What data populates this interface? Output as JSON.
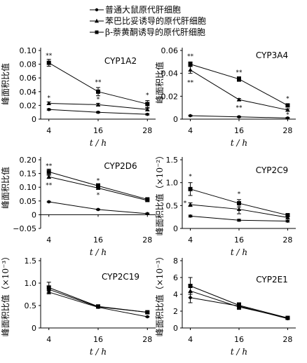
{
  "legend": [
    {
      "label": "普通大鼠原代肝细胞",
      "marker": "circle"
    },
    {
      "label": "苯巴比妥诱导的原代肝细胞",
      "marker": "triangle"
    },
    {
      "label": "β-萘黄酮诱导的原代肝细胞",
      "marker": "square"
    }
  ],
  "chart_data": [
    {
      "type": "line",
      "title": "CYP1A2",
      "ylabel": "峰面积比值",
      "xlabel": "t / h",
      "x": [
        4,
        16,
        28
      ],
      "ylim": [
        0,
        0.1
      ],
      "yticks": [
        "0",
        "0.02",
        "0.04",
        "0.06",
        "0.08",
        "0.10"
      ],
      "xticks": [
        "4",
        "16",
        "28"
      ],
      "series": [
        {
          "name": "普通大鼠原代肝细胞",
          "values": [
            0.014,
            0.01,
            0.007
          ],
          "err": [
            0.001,
            0.001,
            0.001
          ]
        },
        {
          "name": "苯巴比妥诱导的原代肝细胞",
          "values": [
            0.023,
            0.021,
            0.014
          ],
          "err": [
            0.002,
            0.002,
            0.002
          ]
        },
        {
          "name": "β-萘黄酮诱导的原代肝细胞",
          "values": [
            0.082,
            0.04,
            0.022
          ],
          "err": [
            0.005,
            0.006,
            0.005
          ]
        }
      ],
      "annotations": [
        {
          "x": 4,
          "y": 0.093,
          "text": "**"
        },
        {
          "x": 16,
          "y": 0.054,
          "text": "**"
        },
        {
          "x": 28,
          "y": 0.035,
          "text": "*"
        },
        {
          "x": 4,
          "y": 0.031,
          "text": "*"
        },
        {
          "x": 16,
          "y": 0.029,
          "text": "*"
        }
      ]
    },
    {
      "type": "line",
      "title": "CYP3A4",
      "ylabel": "峰面积比值",
      "xlabel": "t / h",
      "x": [
        4,
        16,
        28
      ],
      "ylim": [
        0,
        0.06
      ],
      "yticks": [
        "0",
        "0.02",
        "0.04",
        "0.06"
      ],
      "xticks": [
        "4",
        "16",
        "28"
      ],
      "series": [
        {
          "name": "普通大鼠原代肝细胞",
          "values": [
            0.003,
            0.002,
            0.001
          ],
          "err": [
            0.0005,
            0.0005,
            0.0005
          ]
        },
        {
          "name": "苯巴比妥诱导的原代肝细胞",
          "values": [
            0.043,
            0.017,
            0.008
          ],
          "err": [
            0.003,
            0.001,
            0.001
          ]
        },
        {
          "name": "β-萘黄酮诱导的原代肝细胞",
          "values": [
            0.048,
            0.035,
            0.012
          ],
          "err": [
            0.002,
            0.002,
            0.001
          ]
        }
      ],
      "annotations": [
        {
          "x": 4,
          "y": 0.055,
          "text": "**"
        },
        {
          "x": 16,
          "y": 0.041,
          "text": "**"
        },
        {
          "x": 28,
          "y": 0.018,
          "text": "*"
        },
        {
          "x": 4,
          "y": 0.032,
          "text": "**"
        },
        {
          "x": 16,
          "y": 0.01,
          "text": "**"
        },
        {
          "x": 28,
          "y": 0.004,
          "text": "*"
        }
      ]
    },
    {
      "type": "line",
      "title": "CYP2D6",
      "ylabel": "峰面积比值",
      "xlabel": "t / h",
      "x": [
        4,
        16,
        28
      ],
      "ylim": [
        -0.05,
        0.2
      ],
      "yticks": [
        "−0.05",
        "0",
        "0.05",
        "0.10",
        "0.15",
        "0.20"
      ],
      "xticks": [
        "4",
        "16",
        "28"
      ],
      "series": [
        {
          "name": "普通大鼠原代肝细胞",
          "values": [
            0.047,
            0.019,
            0.004
          ],
          "err": [
            0.002,
            0.002,
            0.002
          ]
        },
        {
          "name": "苯巴比妥诱导的原代肝细胞",
          "values": [
            0.138,
            0.097,
            0.052
          ],
          "err": [
            0.006,
            0.005,
            0.004
          ]
        },
        {
          "name": "β-萘黄酮诱导的原代肝细胞",
          "values": [
            0.156,
            0.105,
            0.056
          ],
          "err": [
            0.01,
            0.008,
            0.004
          ]
        }
      ],
      "annotations": [
        {
          "x": 4,
          "y": 0.178,
          "text": "**"
        },
        {
          "x": 16,
          "y": 0.125,
          "text": "*"
        },
        {
          "x": 4,
          "y": 0.108,
          "text": "**"
        },
        {
          "x": 16,
          "y": 0.073,
          "text": "*"
        }
      ]
    },
    {
      "type": "line",
      "title": "CYP2C9",
      "ylabel": "峰面积比值（×10⁻²）",
      "xlabel": "t / h",
      "x": [
        4,
        16,
        28
      ],
      "ylim": [
        0,
        1.5
      ],
      "yticks": [
        "0",
        "0.5",
        "1.0",
        "1.5"
      ],
      "xticks": [
        "4",
        "16",
        "28"
      ],
      "series": [
        {
          "name": "普通大鼠原代肝细胞",
          "values": [
            0.27,
            0.18,
            0.16
          ],
          "err": [
            0.02,
            0.02,
            0.02
          ]
        },
        {
          "name": "苯巴比妥诱导的原代肝细胞",
          "values": [
            0.52,
            0.42,
            0.24
          ],
          "err": [
            0.04,
            0.1,
            0.03
          ]
        },
        {
          "name": "β-萘黄酮诱导的原代肝细胞",
          "values": [
            0.86,
            0.55,
            0.29
          ],
          "err": [
            0.14,
            0.08,
            0.03
          ]
        }
      ],
      "annotations": [
        {
          "x": 4,
          "y": 1.14,
          "text": "*"
        },
        {
          "x": 16,
          "y": 0.76,
          "text": "*"
        },
        {
          "x": 2.7,
          "y": 0.56,
          "text": "*"
        }
      ]
    },
    {
      "type": "line",
      "title": "CYP2C19",
      "ylabel": "峰面积比值（×10⁻³）",
      "xlabel": "t / h",
      "x": [
        4,
        16,
        28
      ],
      "ylim": [
        0,
        1.5
      ],
      "yticks": [
        "0",
        "0.5",
        "1.0",
        "1.5"
      ],
      "xticks": [
        "4",
        "16",
        "28"
      ],
      "series": [
        {
          "name": "普通大鼠原代肝细胞",
          "values": [
            0.8,
            0.46,
            0.25
          ],
          "err": [
            0.04,
            0.02,
            0.01
          ]
        },
        {
          "name": "苯巴比妥诱导的原代肝细胞",
          "values": [
            0.86,
            0.47,
            0.35
          ],
          "err": [
            0.08,
            0.02,
            0.02
          ]
        },
        {
          "name": "β-萘黄酮诱导的原代肝细胞",
          "values": [
            0.9,
            0.48,
            0.35
          ],
          "err": [
            0.12,
            0.03,
            0.02
          ]
        }
      ],
      "annotations": []
    },
    {
      "type": "line",
      "title": "CYP2E1",
      "ylabel": "峰面积比值（×10⁻³）",
      "xlabel": "t / h",
      "x": [
        4,
        16,
        28
      ],
      "ylim": [
        0,
        8
      ],
      "yticks": [
        "0",
        "2",
        "4",
        "6",
        "8"
      ],
      "xticks": [
        "4",
        "16",
        "28"
      ],
      "series": [
        {
          "name": "普通大鼠原代肝细胞",
          "values": [
            3.6,
            2.6,
            1.1
          ],
          "err": [
            0.6,
            0.3,
            0.1
          ]
        },
        {
          "name": "苯巴比妥诱导的原代肝细胞",
          "values": [
            4.4,
            2.5,
            1.2
          ],
          "err": [
            0.8,
            0.3,
            0.1
          ]
        },
        {
          "name": "β-萘黄酮诱导的原代肝细胞",
          "values": [
            5.0,
            2.7,
            1.2
          ],
          "err": [
            1.0,
            0.3,
            0.1
          ]
        }
      ],
      "annotations": []
    }
  ]
}
